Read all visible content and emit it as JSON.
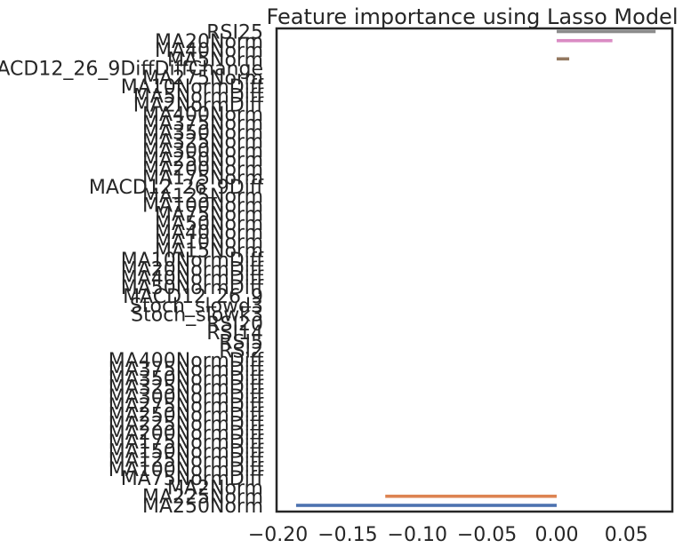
{
  "chart_data": {
    "type": "bar",
    "orientation": "horizontal",
    "title": "Feature importance using Lasso Model",
    "xlabel": "",
    "ylabel": "",
    "xlim": [
      -0.201,
      0.083
    ],
    "grid": false,
    "legend": "none",
    "categories": [
      "RSI25",
      "MA20Norm",
      "MA40Norm",
      "MA5Norm",
      "MACD12_26_9DiffDiffChange",
      "MA275Norm",
      "MA10NormDiff",
      "MA5NormDiff",
      "MA2NormDiff",
      "MA400Norm",
      "MA375Norm",
      "MA350Norm",
      "MA325Norm",
      "MA300Norm",
      "MA250Norm",
      "MA200Norm",
      "MA175Norm",
      "MACD12_26_9Diff",
      "MA125Norm",
      "MA100Norm",
      "MA75Norm",
      "MA50Norm",
      "MA40Norm",
      "MA10Norm",
      "MA15Norm",
      "MA10NormDiff",
      "MA20NormDiff",
      "MA40NormDiff",
      "MA50NormDiff",
      "MACD12_26_9",
      "Stoch_slowd3",
      "Stoch_slowk3",
      "RSI20",
      "RSI14",
      "RSI5",
      "RSI2",
      "MA400NormDiff",
      "MA375NormDiff",
      "MA350NormDiff",
      "MA325NormDiff",
      "MA300NormDiff",
      "MA275NormDiff",
      "MA250NormDiff",
      "MA225NormDiff",
      "MA200NormDiff",
      "MA175NormDiff",
      "MA150NormDiff",
      "MA125NormDiff",
      "MA100NormDiff",
      "MA75NormDiff",
      "MA2Norm",
      "MA225Norm",
      "MA250Norm"
    ],
    "values": [
      0.071,
      0.04,
      0.0,
      0.009,
      0.0,
      0.0,
      0.0,
      0.0,
      0.0,
      0.0,
      0.0,
      0.0,
      0.0,
      0.0,
      0.0,
      0.0,
      0.0,
      0.0,
      0.0,
      0.0,
      0.0,
      0.0,
      0.0,
      0.0,
      0.0,
      0.0,
      0.0,
      0.0,
      0.0,
      0.0,
      0.0,
      0.0,
      0.0,
      0.0,
      0.0,
      0.0,
      0.0,
      0.0,
      0.0,
      0.0,
      0.0,
      0.0,
      0.0,
      0.0,
      0.0,
      0.0,
      0.0,
      0.0,
      0.0,
      0.0,
      0.0,
      -0.123,
      -0.187
    ],
    "colors": [
      "#8c8c8c",
      "#da8bc3",
      "#dd8452",
      "#937860",
      "#55a868",
      "#4c72b0",
      "#c44e52",
      "#8172b3",
      "#ccb974",
      "#64b5cd",
      "#8c8c8c",
      "#da8bc3",
      "#937860",
      "#8172b3",
      "#c44e52",
      "#55a868",
      "#dd8452",
      "#4c72b0",
      "#ccb974",
      "#64b5cd",
      "#8c8c8c",
      "#da8bc3",
      "#937860",
      "#8172b3",
      "#c44e52",
      "#55a868",
      "#dd8452",
      "#4c72b0",
      "#ccb974",
      "#64b5cd",
      "#8c8c8c",
      "#da8bc3",
      "#937860",
      "#8172b3",
      "#c44e52",
      "#55a868",
      "#dd8452",
      "#4c72b0",
      "#ccb974",
      "#64b5cd",
      "#8c8c8c",
      "#da8bc3",
      "#937860",
      "#8172b3",
      "#c44e52",
      "#55a868",
      "#dd8452",
      "#4c72b0",
      "#ccb974",
      "#64b5cd",
      "#8c8c8c",
      "#dd8452",
      "#4c72b0"
    ],
    "x_ticks": [
      -0.2,
      -0.15,
      -0.1,
      -0.05,
      0.0,
      0.05
    ],
    "x_tick_labels": [
      "−0.20",
      "−0.15",
      "−0.10",
      "−0.05",
      "0.00",
      "0.05"
    ]
  }
}
